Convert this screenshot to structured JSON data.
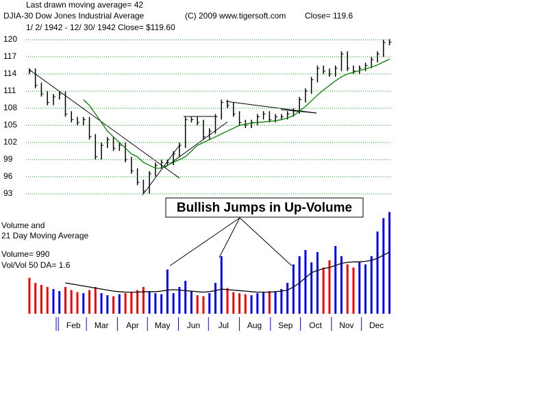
{
  "chart_data": [
    {
      "type": "price",
      "header": "Last drawn moving average= 42",
      "title": "DJIA-30  Dow Jones Industrial Average",
      "copyright": "(C) 2009 www.tigersoft.com",
      "close_label": "Close=  119.6",
      "subtitle": "1/ 2/ 1942 -  12/ 30/ 1942   Close= $119.60",
      "annotation": "Bullish Jumps in Up-Volume",
      "x": [
        2,
        8,
        14,
        20,
        26,
        32,
        38,
        44,
        50,
        56,
        62,
        68,
        74,
        80,
        86,
        92,
        98,
        104,
        110,
        116,
        122,
        128,
        134,
        140,
        146,
        152,
        158,
        164,
        170,
        176,
        182,
        188,
        194,
        200,
        206,
        212,
        218,
        224,
        230,
        236,
        242,
        248,
        254,
        260,
        266,
        272,
        278,
        284,
        290,
        296,
        302,
        308,
        314,
        320,
        326,
        332,
        338,
        344,
        350,
        356,
        362
      ],
      "values": [
        114.5,
        112,
        110.5,
        109,
        110,
        110.5,
        107,
        106,
        105.5,
        106,
        103,
        99.5,
        101.5,
        102.5,
        101,
        101.5,
        99,
        97,
        95,
        93.5,
        96.5,
        98,
        98.5,
        98.5,
        100,
        101.5,
        106,
        106,
        105.5,
        103,
        104,
        106.5,
        109,
        108.5,
        107,
        105.5,
        105,
        105.5,
        106.5,
        107,
        106,
        106.5,
        106.5,
        107,
        107.5,
        109.5,
        111,
        113,
        115,
        114.5,
        114,
        115,
        117.5,
        115,
        114.5,
        115,
        115.5,
        116.5,
        117.5,
        119.5,
        119.6
      ],
      "color": "#000000",
      "moving_average": {
        "color": "#008000",
        "values": [
          null,
          null,
          null,
          null,
          null,
          null,
          null,
          null,
          null,
          109.5,
          108.5,
          107,
          105.5,
          104,
          103,
          102,
          101,
          100,
          99.5,
          98.5,
          98,
          97.5,
          97.5,
          98,
          98.5,
          99,
          99.5,
          100.5,
          101.5,
          102,
          102.5,
          103,
          103.5,
          104,
          104.5,
          105,
          105.2,
          105.4,
          105.5,
          105.6,
          105.7,
          105.8,
          106,
          106.3,
          106.7,
          107.5,
          108.3,
          109.3,
          110.3,
          111.2,
          112,
          112.8,
          113.5,
          114,
          114.3,
          114.6,
          114.9,
          115.2,
          115.6,
          116.1,
          116.6
        ]
      },
      "xlim": [
        0,
        364
      ],
      "ylim": [
        92,
        121
      ],
      "yticks": [
        93,
        96,
        99,
        102,
        105,
        108,
        111,
        114,
        117,
        120
      ],
      "grid": true,
      "grid_color": "#00a000"
    },
    {
      "type": "volume",
      "title_lines": [
        "Volume and",
        "21 Day Moving Average"
      ],
      "volume_label": "Volume= 990",
      "ratio_label": "Vol/Vol 50 DA= 1.6",
      "x": [
        2,
        8,
        14,
        20,
        26,
        32,
        38,
        44,
        50,
        56,
        62,
        68,
        74,
        80,
        86,
        92,
        98,
        104,
        110,
        116,
        122,
        128,
        134,
        140,
        146,
        152,
        158,
        164,
        170,
        176,
        182,
        188,
        194,
        200,
        206,
        212,
        218,
        224,
        230,
        236,
        242,
        248,
        254,
        260,
        266,
        272,
        278,
        284,
        290,
        296,
        302,
        308,
        314,
        320,
        326,
        332,
        338,
        344,
        350,
        356,
        362
      ],
      "values": [
        350,
        300,
        280,
        260,
        240,
        220,
        260,
        230,
        210,
        200,
        230,
        260,
        200,
        180,
        170,
        190,
        200,
        210,
        230,
        260,
        210,
        200,
        190,
        430,
        200,
        260,
        320,
        220,
        180,
        170,
        200,
        300,
        560,
        250,
        210,
        200,
        190,
        180,
        200,
        210,
        220,
        210,
        240,
        300,
        480,
        560,
        620,
        500,
        600,
        450,
        520,
        660,
        560,
        480,
        450,
        500,
        480,
        560,
        800,
        930,
        990
      ],
      "up_color": "#0000ff",
      "down_color": "#ff0000",
      "moving_average": {
        "color": "#000000",
        "values": [
          null,
          null,
          null,
          null,
          null,
          null,
          300,
          290,
          280,
          270,
          260,
          250,
          240,
          230,
          220,
          215,
          210,
          210,
          210,
          215,
          215,
          215,
          220,
          230,
          235,
          230,
          225,
          220,
          215,
          210,
          215,
          225,
          240,
          235,
          230,
          225,
          220,
          215,
          210,
          210,
          210,
          215,
          220,
          230,
          260,
          300,
          350,
          400,
          420,
          440,
          450,
          470,
          490,
          500,
          505,
          505,
          510,
          520,
          540,
          570,
          600
        ]
      },
      "xlim": [
        0,
        364
      ],
      "ylim": [
        0,
        1000
      ],
      "xticks": [
        {
          "value": 31,
          "label": "Feb"
        },
        {
          "value": 59,
          "label": "Mar"
        },
        {
          "value": 90,
          "label": "Apr"
        },
        {
          "value": 120,
          "label": "May"
        },
        {
          "value": 151,
          "label": "Jun"
        },
        {
          "value": 181,
          "label": "Jul"
        },
        {
          "value": 212,
          "label": "Aug"
        },
        {
          "value": 243,
          "label": "Sep"
        },
        {
          "value": 273,
          "label": "Oct"
        },
        {
          "value": 304,
          "label": "Nov"
        },
        {
          "value": 334,
          "label": "Dec"
        }
      ],
      "tick_color": "#0000ff"
    }
  ]
}
